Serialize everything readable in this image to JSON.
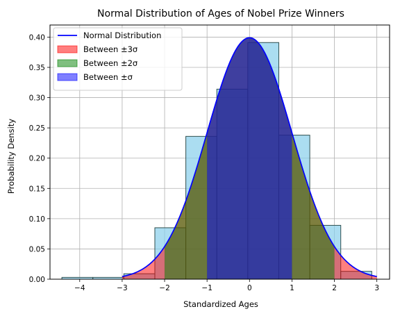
{
  "chart_data": {
    "type": "histogram",
    "title": "Normal Distribution of Ages of Nobel Prize Winners",
    "xlabel": "Standardized Ages",
    "ylabel": "Probability Density",
    "xlim": [
      -4.7,
      3.3
    ],
    "ylim": [
      0,
      0.42
    ],
    "xticks": [
      -4,
      -3,
      -2,
      -1,
      0,
      1,
      2,
      3
    ],
    "yticks": [
      0.0,
      0.05,
      0.1,
      0.15,
      0.2,
      0.25,
      0.3,
      0.35,
      0.4
    ],
    "xtick_labels": [
      "−4",
      "−3",
      "−2",
      "−1",
      "0",
      "1",
      "2",
      "3"
    ],
    "ytick_labels": [
      "0.00",
      "0.05",
      "0.10",
      "0.15",
      "0.20",
      "0.25",
      "0.30",
      "0.35",
      "0.40"
    ],
    "grid": true,
    "histogram": {
      "color": "#87ceeb",
      "edge_color": "#2f4f4f",
      "bin_edges": [
        -4.42,
        -3.69,
        -2.96,
        -2.23,
        -1.5,
        -0.77,
        -0.04,
        0.69,
        1.42,
        2.15,
        2.88
      ],
      "values": [
        0.003,
        0.003,
        0.009,
        0.085,
        0.236,
        0.314,
        0.391,
        0.238,
        0.089,
        0.013
      ]
    },
    "normal_curve": {
      "mean": 0,
      "std": 1,
      "x_range": [
        -3,
        3
      ],
      "color": "#0000ff"
    },
    "shaded_regions": [
      {
        "range": [
          -3,
          3
        ],
        "color": "#ff0000",
        "alpha": 0.5
      },
      {
        "range": [
          -2,
          2
        ],
        "color": "#008000",
        "alpha": 0.5
      },
      {
        "range": [
          -1,
          1
        ],
        "color": "#0000ff",
        "alpha": 0.5
      }
    ],
    "legend": {
      "position": "top-left",
      "entries": [
        {
          "label": "Normal Distribution",
          "kind": "line",
          "color": "#0000ff"
        },
        {
          "label": "Between ±3σ",
          "kind": "patch",
          "color": "#ff0000"
        },
        {
          "label": "Between ±2σ",
          "kind": "patch",
          "color": "#008000"
        },
        {
          "label": "Between ±σ",
          "kind": "patch",
          "color": "#0000ff"
        }
      ]
    }
  }
}
